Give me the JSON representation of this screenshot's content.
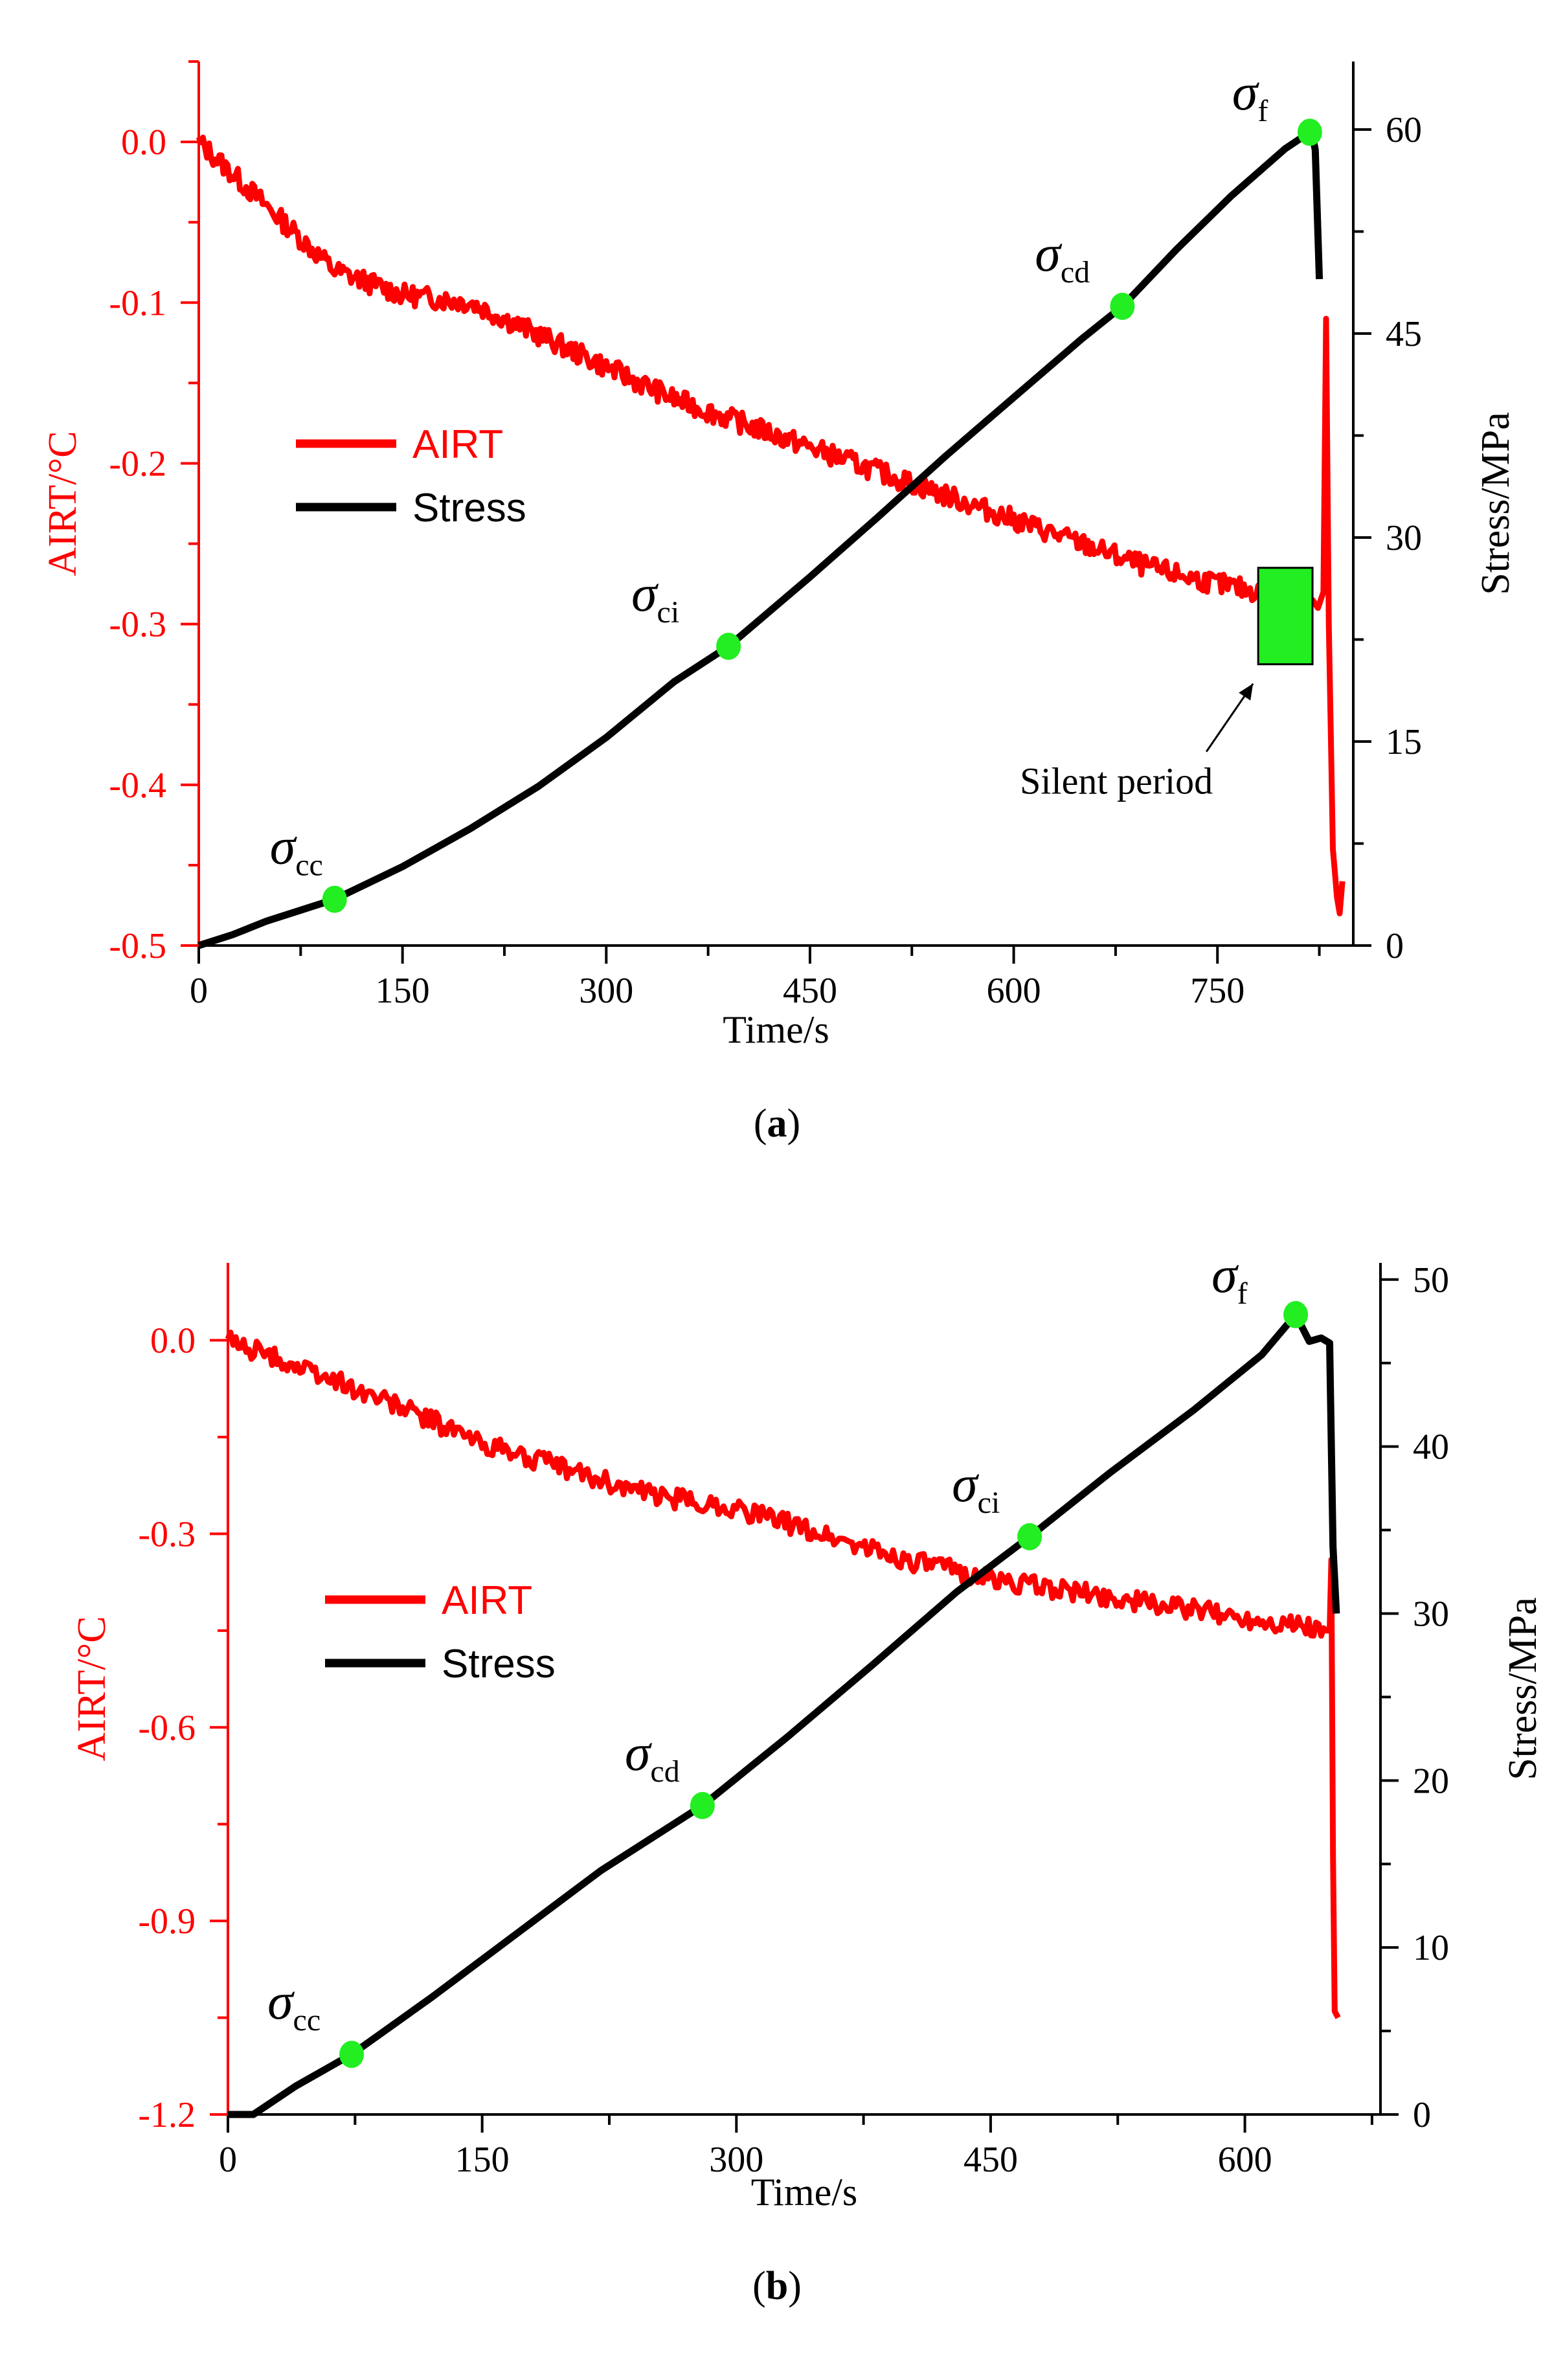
{
  "colors": {
    "airt": "#ff0000",
    "stress": "#000000",
    "marker": "#22ee22",
    "axis": "#000000"
  },
  "chart_data": [
    {
      "panel_label": "a",
      "type": "line",
      "xlabel": "Time/s",
      "ylabel_left": "AIRT/°C",
      "ylabel_right": "Stress/MPa",
      "xlim": [
        0,
        850
      ],
      "ylim_left": [
        -0.5,
        0.05
      ],
      "ylim_right": [
        0,
        65
      ],
      "xticks": [
        0,
        150,
        300,
        450,
        600,
        750
      ],
      "yticks_left": [
        0.0,
        -0.1,
        -0.2,
        -0.3,
        -0.4,
        -0.5
      ],
      "yticks_left_labels": [
        "0.0",
        "-0.1",
        "-0.2",
        "-0.3",
        "-0.4",
        "-0.5"
      ],
      "yticks_right": [
        0,
        15,
        30,
        45,
        60
      ],
      "legend": {
        "placement": "middle-left",
        "entries": [
          "AIRT",
          "Stress"
        ]
      },
      "series": [
        {
          "name": "AIRT",
          "axis": "left",
          "x": [
            0,
            50,
            100,
            150,
            200,
            250,
            300,
            350,
            400,
            450,
            500,
            550,
            600,
            650,
            700,
            750,
            780,
            800,
            810,
            820,
            824,
            828,
            830,
            832,
            835,
            838,
            840,
            842
          ],
          "y": [
            0.0,
            -0.04,
            -0.08,
            -0.095,
            -0.1,
            -0.12,
            -0.14,
            -0.16,
            -0.175,
            -0.19,
            -0.205,
            -0.22,
            -0.235,
            -0.25,
            -0.265,
            -0.275,
            -0.28,
            -0.285,
            -0.28,
            -0.285,
            -0.29,
            -0.28,
            -0.11,
            -0.3,
            -0.44,
            -0.47,
            -0.48,
            -0.46
          ]
        },
        {
          "name": "Stress",
          "axis": "right",
          "x": [
            0,
            25,
            50,
            100,
            150,
            200,
            250,
            300,
            350,
            390,
            450,
            500,
            550,
            600,
            650,
            680,
            720,
            760,
            800,
            818,
            820,
            822,
            825
          ],
          "y": [
            0,
            0.8,
            1.8,
            3.4,
            5.8,
            8.6,
            11.7,
            15.3,
            19.4,
            22.0,
            27.1,
            31.5,
            36.0,
            40.3,
            44.6,
            47.0,
            51.2,
            55.1,
            58.6,
            59.8,
            59.5,
            58.5,
            49.0
          ]
        }
      ],
      "markers": [
        {
          "label": "σ",
          "sub": "cc",
          "x": 100,
          "y": 3.4
        },
        {
          "label": "σ",
          "sub": "ci",
          "x": 390,
          "y": 22.0
        },
        {
          "label": "σ",
          "sub": "cd",
          "x": 680,
          "y": 47.0
        },
        {
          "label": "σ",
          "sub": "f",
          "x": 818,
          "y": 59.8
        }
      ],
      "annotations": [
        {
          "text": "Silent period",
          "box_x": [
            780,
            820
          ],
          "box_y_left": [
            -0.325,
            -0.265
          ]
        }
      ]
    },
    {
      "panel_label": "b",
      "type": "line",
      "xlabel": "Time/s",
      "ylabel_left": "AIRT/°C",
      "ylabel_right": "Stress/MPa",
      "xlim": [
        0,
        680
      ],
      "ylim_left": [
        -1.2,
        0.12
      ],
      "ylim_right": [
        0,
        51
      ],
      "xticks": [
        0,
        150,
        300,
        450,
        600
      ],
      "yticks_left": [
        0.0,
        -0.3,
        -0.6,
        -0.9,
        -1.2
      ],
      "yticks_left_labels": [
        "0.0",
        "-0.3",
        "-0.6",
        "-0.9",
        "-1.2"
      ],
      "yticks_right": [
        0,
        10,
        20,
        30,
        40,
        50
      ],
      "legend": {
        "placement": "middle-left",
        "entries": [
          "AIRT",
          "Stress"
        ]
      },
      "series": [
        {
          "name": "AIRT",
          "axis": "left",
          "x": [
            0,
            20,
            50,
            100,
            150,
            200,
            250,
            300,
            350,
            400,
            450,
            500,
            550,
            600,
            630,
            648,
            650,
            651,
            652,
            653,
            655
          ],
          "y": [
            0.0,
            -0.02,
            -0.05,
            -0.1,
            -0.16,
            -0.2,
            -0.24,
            -0.26,
            -0.3,
            -0.34,
            -0.37,
            -0.39,
            -0.41,
            -0.43,
            -0.44,
            -0.45,
            -0.45,
            -0.34,
            -0.8,
            -1.04,
            -1.05
          ]
        },
        {
          "name": "Stress",
          "axis": "right",
          "x": [
            0,
            15,
            40,
            73,
            120,
            170,
            220,
            280,
            330,
            380,
            430,
            473,
            520,
            570,
            610,
            630,
            638,
            645,
            650,
            652,
            654
          ],
          "y": [
            0,
            0,
            1.7,
            3.6,
            7.0,
            10.8,
            14.6,
            18.5,
            22.6,
            26.9,
            31.3,
            34.6,
            38.4,
            42.2,
            45.5,
            47.9,
            46.3,
            46.5,
            46.2,
            34.0,
            30.0
          ]
        }
      ],
      "markers": [
        {
          "label": "σ",
          "sub": "cc",
          "x": 73,
          "y": 3.6
        },
        {
          "label": "σ",
          "sub": "cd",
          "x": 280,
          "y": 18.5
        },
        {
          "label": "σ",
          "sub": "ci",
          "x": 473,
          "y": 34.6
        },
        {
          "label": "σ",
          "sub": "f",
          "x": 630,
          "y": 47.9
        }
      ],
      "annotations": []
    }
  ]
}
